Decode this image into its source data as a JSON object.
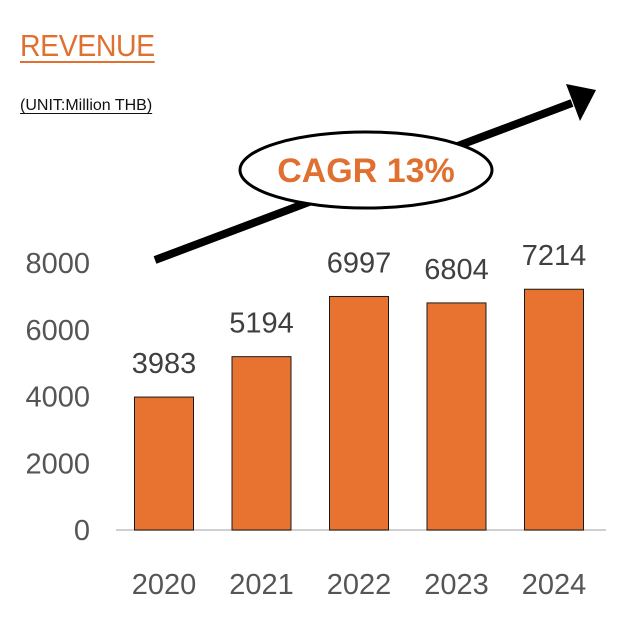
{
  "title": "REVENUE",
  "unit": "(UNIT:Million  THB)",
  "annotation": "CAGR 13%",
  "colors": {
    "bar": "#e8722f",
    "accent": "#e0702f",
    "arrow": "#000000"
  },
  "chart_data": {
    "type": "bar",
    "title": "REVENUE",
    "categories": [
      "2020",
      "2021",
      "2022",
      "2023",
      "2024"
    ],
    "values": [
      3983,
      5194,
      6997,
      6804,
      7214
    ],
    "data_labels": [
      "3983",
      "5194",
      "6997",
      "6804",
      "7214"
    ],
    "ylim": [
      0,
      8000
    ],
    "yticks": [
      "0",
      "2000",
      "4000",
      "6000",
      "8000"
    ],
    "grid": false,
    "annotation": "CAGR 13%"
  }
}
